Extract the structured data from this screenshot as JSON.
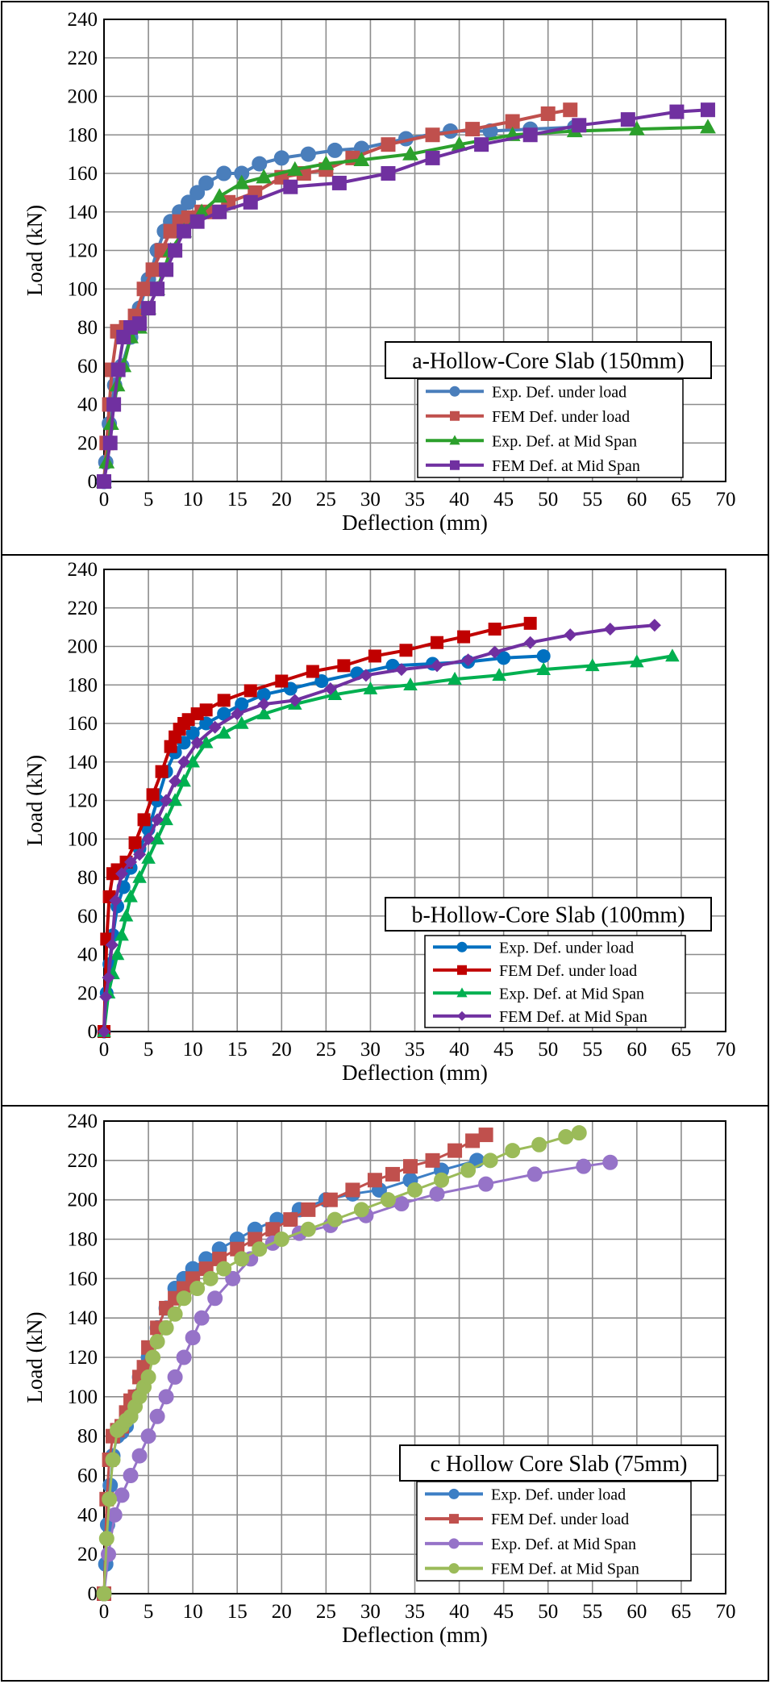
{
  "chart_data": [
    {
      "type": "line",
      "annotation": "a-Hollow-Core Slab (150mm)",
      "xlabel": "Deflection (mm)",
      "ylabel": "Load (kN)",
      "xlim": [
        0,
        70
      ],
      "ylim": [
        0,
        240
      ],
      "xticks": [
        0,
        5,
        10,
        15,
        20,
        25,
        30,
        35,
        40,
        45,
        50,
        55,
        60,
        65,
        70
      ],
      "yticks": [
        0,
        20,
        40,
        60,
        80,
        100,
        120,
        140,
        160,
        180,
        200,
        220,
        240
      ],
      "grid": true,
      "legend_position": "bottom-right",
      "series": [
        {
          "name": "Exp. Def. under load",
          "color": "#4a7ebb",
          "marker": "circle",
          "x": [
            0,
            0.2,
            0.4,
            0.6,
            0.9,
            1.2,
            2.0,
            3.0,
            4.0,
            5.0,
            6.0,
            6.8,
            7.5,
            8.5,
            9.5,
            10.5,
            11.5,
            13.5,
            15.5,
            17.5,
            20.0,
            23.0,
            26.0,
            29.0,
            34.0,
            39.0,
            43.5,
            48.0,
            53.0
          ],
          "y": [
            0,
            10,
            20,
            30,
            40,
            50,
            60,
            75,
            90,
            105,
            120,
            130,
            135,
            140,
            145,
            150,
            155,
            160,
            160,
            165,
            168,
            170,
            172,
            173,
            178,
            182,
            182,
            183,
            184
          ]
        },
        {
          "name": "FEM Def. under load",
          "color": "#c0504d",
          "marker": "square",
          "x": [
            0,
            0.3,
            0.6,
            0.9,
            1.5,
            2.5,
            3.5,
            4.5,
            5.5,
            6.5,
            7.5,
            8.5,
            9.5,
            11.0,
            12.5,
            14.0,
            17.0,
            20.0,
            22.5,
            25.0,
            28.0,
            32.0,
            37.0,
            41.5,
            46.0,
            50.0,
            52.5
          ],
          "y": [
            0,
            20,
            40,
            58,
            78,
            80,
            86,
            100,
            110,
            120,
            130,
            135,
            137,
            140,
            140,
            145,
            150,
            158,
            160,
            162,
            168,
            175,
            180,
            183,
            187,
            191,
            193
          ]
        },
        {
          "name": "Exp. Def. at Mid Span",
          "color": "#2ca02c",
          "marker": "triangle",
          "x": [
            0,
            0.3,
            0.8,
            1.5,
            2.2,
            3.0,
            4.0,
            5.0,
            6.0,
            7.5,
            9.0,
            11.0,
            13.0,
            15.5,
            18.0,
            21.5,
            25.0,
            29.0,
            34.5,
            40.0,
            46.0,
            53.0,
            60.0,
            68.0
          ],
          "y": [
            0,
            10,
            30,
            50,
            60,
            75,
            80,
            90,
            100,
            120,
            130,
            140,
            148,
            155,
            158,
            162,
            165,
            167,
            170,
            175,
            180,
            182,
            183,
            184
          ]
        },
        {
          "name": "FEM Def. at Mid Span",
          "color": "#7030a0",
          "marker": "square",
          "x": [
            0,
            0.7,
            1.1,
            1.6,
            2.2,
            3.0,
            4.0,
            5.0,
            6.0,
            7.0,
            8.0,
            9.0,
            10.5,
            13.0,
            16.5,
            21.0,
            26.5,
            32.0,
            37.0,
            42.5,
            48.0,
            53.5,
            59.0,
            64.5,
            68.0
          ],
          "y": [
            0,
            20,
            40,
            58,
            75,
            80,
            82,
            90,
            100,
            110,
            120,
            130,
            135,
            140,
            145,
            153,
            155,
            160,
            168,
            175,
            180,
            185,
            188,
            192,
            193
          ]
        }
      ]
    },
    {
      "type": "line",
      "annotation": "b-Hollow-Core Slab (100mm)",
      "xlabel": "Deflection (mm)",
      "ylabel": "Load (kN)",
      "xlim": [
        0,
        70
      ],
      "ylim": [
        0,
        240
      ],
      "xticks": [
        0,
        5,
        10,
        15,
        20,
        25,
        30,
        35,
        40,
        45,
        50,
        55,
        60,
        65,
        70
      ],
      "yticks": [
        0,
        20,
        40,
        60,
        80,
        100,
        120,
        140,
        160,
        180,
        200,
        220,
        240
      ],
      "grid": true,
      "legend_position": "bottom-right",
      "series": [
        {
          "name": "Exp. Def. under load",
          "color": "#0070c0",
          "marker": "circle",
          "x": [
            0,
            0.3,
            0.6,
            1.0,
            1.5,
            2.2,
            3.0,
            4.0,
            5.0,
            6.0,
            7.0,
            8.0,
            9.0,
            10.0,
            11.5,
            13.5,
            15.5,
            18.0,
            21.0,
            24.5,
            28.5,
            32.5,
            37.0,
            41.0,
            45.0,
            49.5
          ],
          "y": [
            0,
            20,
            35,
            50,
            65,
            75,
            85,
            95,
            105,
            120,
            135,
            145,
            150,
            155,
            160,
            165,
            170,
            175,
            178,
            182,
            186,
            190,
            191,
            192,
            194,
            195
          ]
        },
        {
          "name": "FEM Def. under load",
          "color": "#c00000",
          "marker": "square",
          "x": [
            0,
            0.3,
            0.6,
            1.0,
            1.5,
            2.5,
            3.5,
            4.5,
            5.5,
            6.5,
            7.5,
            8.0,
            8.5,
            9.0,
            9.5,
            10.5,
            11.5,
            13.5,
            16.5,
            20.0,
            23.5,
            27.0,
            30.5,
            34.0,
            37.5,
            40.5,
            44.0,
            48.0
          ],
          "y": [
            0,
            48,
            70,
            82,
            84,
            88,
            98,
            110,
            123,
            135,
            148,
            153,
            157,
            160,
            162,
            165,
            167,
            172,
            177,
            182,
            187,
            190,
            195,
            198,
            202,
            205,
            209,
            212
          ]
        },
        {
          "name": "Exp. Def. at Mid Span",
          "color": "#00b050",
          "marker": "triangle",
          "x": [
            0,
            0.5,
            1.0,
            1.5,
            2.0,
            2.5,
            3.0,
            4.0,
            5.0,
            6.0,
            7.0,
            8.0,
            9.0,
            10.0,
            11.5,
            13.5,
            15.5,
            18.0,
            21.5,
            26.0,
            30.0,
            34.5,
            39.5,
            44.5,
            49.5,
            55.0,
            60.0,
            64.0
          ],
          "y": [
            0,
            20,
            30,
            40,
            50,
            60,
            70,
            80,
            90,
            100,
            110,
            120,
            130,
            140,
            150,
            155,
            160,
            165,
            170,
            175,
            178,
            180,
            183,
            185,
            188,
            190,
            192,
            195
          ]
        },
        {
          "name": "FEM Def. at Mid Span",
          "color": "#7030a0",
          "marker": "diamond",
          "x": [
            0,
            0.2,
            0.5,
            0.9,
            1.3,
            2.0,
            3.0,
            4.0,
            5.0,
            6.0,
            7.0,
            8.0,
            9.0,
            10.5,
            12.5,
            15.0,
            18.0,
            21.5,
            25.5,
            29.5,
            33.5,
            37.5,
            41.0,
            44.0,
            48.0,
            52.5,
            57.0,
            62.0
          ],
          "y": [
            0,
            18,
            28,
            45,
            68,
            82,
            88,
            92,
            100,
            110,
            120,
            130,
            140,
            150,
            158,
            165,
            170,
            172,
            178,
            185,
            188,
            190,
            193,
            197,
            202,
            206,
            209,
            211
          ]
        }
      ]
    },
    {
      "type": "line",
      "annotation": "c Hollow Core Slab (75mm)",
      "xlabel": "Deflection (mm)",
      "ylabel": "Load (kN)",
      "xlim": [
        0,
        70
      ],
      "ylim": [
        0,
        240
      ],
      "xticks": [
        0,
        5,
        10,
        15,
        20,
        25,
        30,
        35,
        40,
        45,
        50,
        55,
        60,
        65,
        70
      ],
      "yticks": [
        0,
        20,
        40,
        60,
        80,
        100,
        120,
        140,
        160,
        180,
        200,
        220,
        240
      ],
      "grid": true,
      "legend_position": "bottom-right",
      "series": [
        {
          "name": "Exp. Def. under load",
          "color": "#3d7fc5",
          "marker": "circle",
          "x": [
            0,
            0.2,
            0.4,
            0.7,
            1.0,
            1.5,
            2.0,
            2.5,
            3.0,
            3.5,
            4.0,
            5.0,
            6.0,
            7.0,
            8.0,
            9.0,
            10.0,
            11.5,
            13.0,
            15.0,
            17.0,
            19.5,
            22.0,
            25.0,
            28.0,
            31.0,
            34.5,
            38.0,
            42.0
          ],
          "y": [
            0,
            15,
            35,
            55,
            70,
            80,
            82,
            85,
            90,
            100,
            110,
            120,
            135,
            145,
            155,
            160,
            165,
            170,
            175,
            180,
            185,
            190,
            195,
            200,
            203,
            205,
            210,
            215,
            220
          ]
        },
        {
          "name": "FEM Def. under load",
          "color": "#c0504d",
          "marker": "square",
          "x": [
            0,
            0.3,
            0.6,
            1.0,
            1.5,
            2.0,
            2.5,
            3.0,
            3.5,
            4.0,
            4.5,
            5.0,
            6.0,
            7.0,
            8.0,
            9.0,
            10.0,
            11.5,
            13.0,
            15.0,
            17.0,
            19.0,
            21.0,
            23.0,
            25.5,
            28.0,
            30.5,
            32.5,
            34.5,
            37.0,
            39.5,
            41.5,
            43.0
          ],
          "y": [
            0,
            48,
            68,
            80,
            83,
            85,
            92,
            98,
            100,
            110,
            115,
            125,
            135,
            145,
            150,
            155,
            160,
            165,
            170,
            175,
            180,
            185,
            190,
            195,
            200,
            205,
            210,
            213,
            217,
            220,
            225,
            230,
            233
          ]
        },
        {
          "name": "Exp. Def. at Mid Span",
          "color": "#9673c8",
          "marker": "circle",
          "x": [
            0,
            0.5,
            1.2,
            2.0,
            3.0,
            4.0,
            5.0,
            6.0,
            7.0,
            8.0,
            9.0,
            10.0,
            11.0,
            12.5,
            14.5,
            16.5,
            19.0,
            22.0,
            25.5,
            29.5,
            33.5,
            37.5,
            43.0,
            48.5,
            54.0,
            57.0
          ],
          "y": [
            0,
            20,
            40,
            50,
            60,
            70,
            80,
            90,
            100,
            110,
            120,
            130,
            140,
            150,
            160,
            170,
            178,
            183,
            187,
            192,
            198,
            203,
            208,
            213,
            217,
            219
          ]
        },
        {
          "name": "FEM Def. at Mid Span",
          "color": "#9bbb59",
          "marker": "circle",
          "x": [
            0,
            0.3,
            0.6,
            1.0,
            1.5,
            2.0,
            2.5,
            3.0,
            3.5,
            4.0,
            4.5,
            5.0,
            5.5,
            6.0,
            7.0,
            8.0,
            9.0,
            10.5,
            12.0,
            13.5,
            15.5,
            17.5,
            20.0,
            23.0,
            26.0,
            29.0,
            32.0,
            35.0,
            38.0,
            41.0,
            43.5,
            46.0,
            49.0,
            52.0,
            53.5
          ],
          "y": [
            0,
            28,
            48,
            68,
            83,
            85,
            88,
            90,
            95,
            100,
            105,
            110,
            120,
            128,
            135,
            142,
            150,
            155,
            160,
            165,
            170,
            175,
            180,
            185,
            190,
            195,
            200,
            205,
            210,
            215,
            220,
            225,
            228,
            232,
            234
          ]
        }
      ]
    }
  ]
}
